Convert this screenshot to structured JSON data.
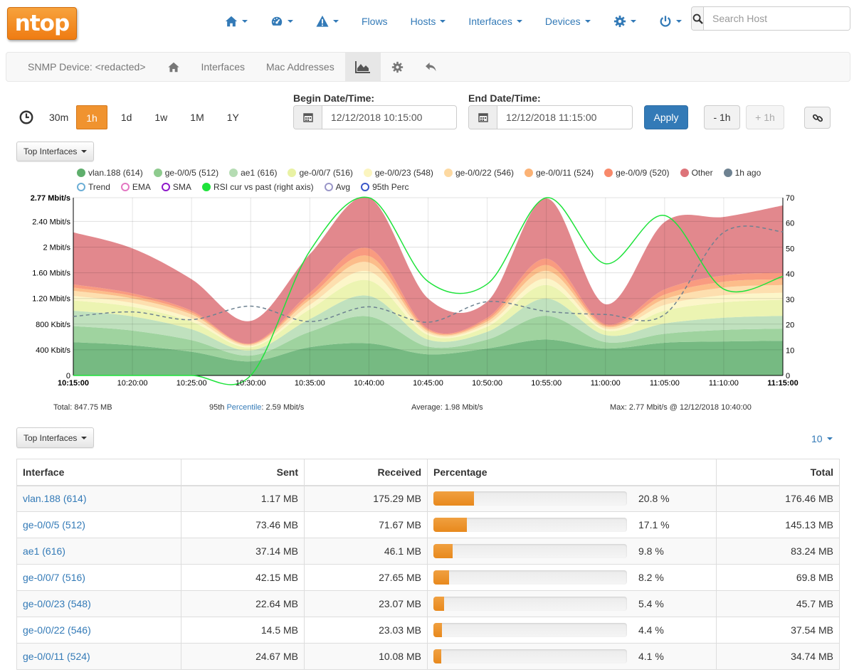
{
  "logo": {
    "text": "ntop"
  },
  "navbar": {
    "items": [
      {
        "label": "",
        "icon": "home-icon"
      },
      {
        "label": "",
        "icon": "dashboard-icon"
      },
      {
        "label": "",
        "icon": "alert-icon"
      },
      {
        "label": "Flows"
      },
      {
        "label": "Hosts"
      },
      {
        "label": "Interfaces"
      },
      {
        "label": "Devices"
      },
      {
        "label": "",
        "icon": "gear-icon"
      },
      {
        "label": "",
        "icon": "power-icon"
      }
    ],
    "search_placeholder": "Search Host"
  },
  "subnav": {
    "title": "SNMP Device: <redacted>",
    "interfaces": "Interfaces",
    "mac_addresses": "Mac Addresses"
  },
  "time": {
    "ranges": [
      "30m",
      "1h",
      "1d",
      "1w",
      "1M",
      "1Y"
    ],
    "active": "1h",
    "begin_label": "Begin Date/Time:",
    "begin_value": "12/12/2018 10:15:00",
    "end_label": "End Date/Time:",
    "end_value": "12/12/2018 11:15:00",
    "apply": "Apply",
    "minus": "- 1h",
    "plus": "+ 1h"
  },
  "top_interfaces_label": "Top Interfaces",
  "legend": {
    "series": [
      {
        "name": "vlan.188 (614)",
        "color": "#5eae6c"
      },
      {
        "name": "ge-0/0/5 (512)",
        "color": "#8ecb8e"
      },
      {
        "name": "ae1 (616)",
        "color": "#b5dcb3"
      },
      {
        "name": "ge-0/0/7 (516)",
        "color": "#e9f2a4"
      },
      {
        "name": "ge-0/0/23 (548)",
        "color": "#fbf5bf"
      },
      {
        "name": "ge-0/0/22 (546)",
        "color": "#fdd9a1"
      },
      {
        "name": "ge-0/0/11 (524)",
        "color": "#fbb275"
      },
      {
        "name": "ge-0/0/9 (520)",
        "color": "#f8896a"
      },
      {
        "name": "Other",
        "color": "#dd7379"
      },
      {
        "name": "1h ago",
        "color": "#6e8291"
      }
    ],
    "overlays": [
      {
        "name": "Trend",
        "color": "#6baed6"
      },
      {
        "name": "EMA",
        "color": "#e377c2"
      },
      {
        "name": "SMA",
        "color": "#8e18c9"
      },
      {
        "name": "RSI cur vs past (right axis)",
        "color": "#1ee33b",
        "filled": true
      },
      {
        "name": "Avg",
        "color": "#9a96c8"
      },
      {
        "name": "95th Perc",
        "color": "#3a57c9"
      }
    ]
  },
  "chart_data": {
    "type": "area",
    "x": [
      "10:15:00",
      "10:20:00",
      "10:25:00",
      "10:30:00",
      "10:35:00",
      "10:40:00",
      "10:45:00",
      "10:50:00",
      "10:55:00",
      "11:00:00",
      "11:05:00",
      "11:10:00",
      "11:15:00"
    ],
    "series": [
      {
        "name": "vlan.188 (614)",
        "values": [
          520,
          470,
          370,
          220,
          440,
          500,
          330,
          420,
          560,
          420,
          510,
          530,
          540
        ]
      },
      {
        "name": "ge-0/0/5 (512)",
        "values": [
          250,
          230,
          180,
          90,
          240,
          420,
          120,
          140,
          370,
          100,
          140,
          180,
          190
        ]
      },
      {
        "name": "ae1 (616)",
        "values": [
          240,
          220,
          170,
          80,
          200,
          320,
          110,
          120,
          270,
          110,
          160,
          190,
          200
        ]
      },
      {
        "name": "ge-0/0/7 (516)",
        "values": [
          160,
          150,
          120,
          50,
          150,
          240,
          70,
          80,
          210,
          70,
          200,
          240,
          250
        ]
      },
      {
        "name": "ge-0/0/23 (548)",
        "values": [
          70,
          60,
          50,
          20,
          70,
          140,
          30,
          40,
          100,
          30,
          90,
          110,
          110
        ]
      },
      {
        "name": "ge-0/0/22 (546)",
        "values": [
          80,
          70,
          60,
          20,
          80,
          140,
          30,
          40,
          120,
          30,
          90,
          120,
          120
        ]
      },
      {
        "name": "ge-0/0/11 (524)",
        "values": [
          50,
          40,
          30,
          10,
          50,
          100,
          20,
          30,
          90,
          20,
          70,
          90,
          90
        ]
      },
      {
        "name": "ge-0/0/9 (520)",
        "values": [
          50,
          40,
          30,
          10,
          60,
          120,
          20,
          30,
          100,
          20,
          80,
          100,
          100
        ]
      },
      {
        "name": "Other",
        "values": [
          810,
          700,
          490,
          350,
          600,
          790,
          470,
          250,
          940,
          310,
          1050,
          910,
          1050
        ]
      }
    ],
    "past": {
      "name": "1h ago",
      "values": [
        920,
        990,
        870,
        1080,
        840,
        1070,
        830,
        1150,
        1000,
        950,
        950,
        2230,
        2240
      ]
    },
    "rsi": {
      "name": "RSI cur vs past (right axis)",
      "values": [
        0,
        0,
        0,
        0,
        49,
        70,
        37,
        36,
        70,
        44,
        63,
        34,
        39
      ]
    },
    "ylim": [
      0,
      2770
    ],
    "yticks": [
      {
        "v": 0,
        "label": "0"
      },
      {
        "v": 400,
        "label": "400 Kbit/s"
      },
      {
        "v": 800,
        "label": "800 Kbit/s"
      },
      {
        "v": 1200,
        "label": "1.20 Mbit/s"
      },
      {
        "v": 1600,
        "label": "1.60 Mbit/s"
      },
      {
        "v": 2000,
        "label": "2 Mbit/s"
      },
      {
        "v": 2400,
        "label": "2.40 Mbit/s"
      },
      {
        "v": 2770,
        "label": "2.77 Mbit/s"
      }
    ],
    "y2lim": [
      0,
      70
    ],
    "y2ticks": [
      "0",
      "10",
      "20",
      "30",
      "40",
      "50",
      "60",
      "70"
    ],
    "grid": true
  },
  "stats": {
    "total": "Total: 847.75 MB",
    "perc_prefix": "95th ",
    "perc_link": "Percentile",
    "perc_value": ": 2.59 Mbit/s",
    "average": "Average: 1.98 Mbit/s",
    "max": "Max: 2.77 Mbit/s @ 12/12/2018 10:40:00"
  },
  "table": {
    "per_page": "10",
    "headers": [
      "Interface",
      "Sent",
      "Received",
      "Percentage",
      "Total"
    ],
    "rows": [
      {
        "iface": "vlan.188 (614)",
        "sent": "1.17 MB",
        "rcvd": "175.29 MB",
        "pct": 20.8,
        "pct_label": "20.8 %",
        "total": "176.46 MB"
      },
      {
        "iface": "ge-0/0/5 (512)",
        "sent": "73.46 MB",
        "rcvd": "71.67 MB",
        "pct": 17.1,
        "pct_label": "17.1 %",
        "total": "145.13 MB"
      },
      {
        "iface": "ae1 (616)",
        "sent": "37.14 MB",
        "rcvd": "46.1 MB",
        "pct": 9.8,
        "pct_label": "9.8 %",
        "total": "83.24 MB"
      },
      {
        "iface": "ge-0/0/7 (516)",
        "sent": "42.15 MB",
        "rcvd": "27.65 MB",
        "pct": 8.2,
        "pct_label": "8.2 %",
        "total": "69.8 MB"
      },
      {
        "iface": "ge-0/0/23 (548)",
        "sent": "22.64 MB",
        "rcvd": "23.07 MB",
        "pct": 5.4,
        "pct_label": "5.4 %",
        "total": "45.7 MB"
      },
      {
        "iface": "ge-0/0/22 (546)",
        "sent": "14.5 MB",
        "rcvd": "23.03 MB",
        "pct": 4.4,
        "pct_label": "4.4 %",
        "total": "37.54 MB"
      },
      {
        "iface": "ge-0/0/11 (524)",
        "sent": "24.67 MB",
        "rcvd": "10.08 MB",
        "pct": 4.1,
        "pct_label": "4.1 %",
        "total": "34.74 MB"
      }
    ]
  }
}
